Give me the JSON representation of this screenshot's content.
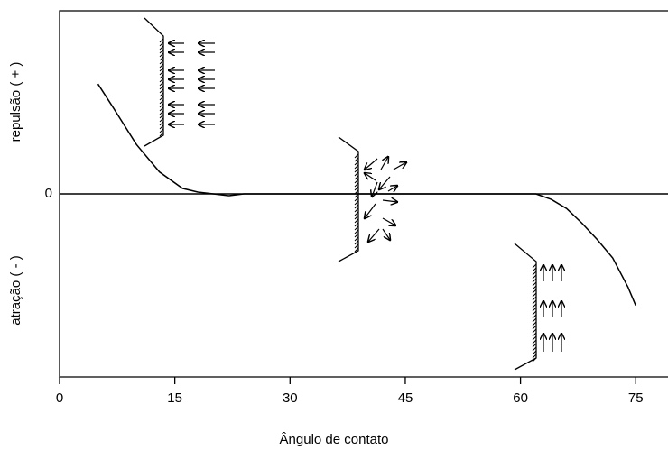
{
  "chart_data": {
    "type": "line",
    "x_label": "Ângulo de contato",
    "y_label_top": "repulsão ( + )",
    "y_label_bottom": "atração ( - )",
    "x": [
      5,
      7,
      10,
      13,
      16,
      18,
      20,
      22,
      24,
      30,
      40,
      50,
      62,
      64,
      66,
      68,
      70,
      72,
      74,
      75
    ],
    "values": [
      0.6,
      0.47,
      0.27,
      0.12,
      0.03,
      0.01,
      0,
      -0.01,
      0,
      0,
      0,
      0,
      0,
      -0.03,
      -0.08,
      -0.16,
      -0.25,
      -0.35,
      -0.51,
      -0.61
    ],
    "color": "#000000",
    "xlim": [
      0,
      79.2
    ],
    "xticks": [
      0,
      15,
      30,
      45,
      60,
      75
    ],
    "ylim": [
      -1,
      1
    ],
    "yticks": [
      0
    ]
  }
}
